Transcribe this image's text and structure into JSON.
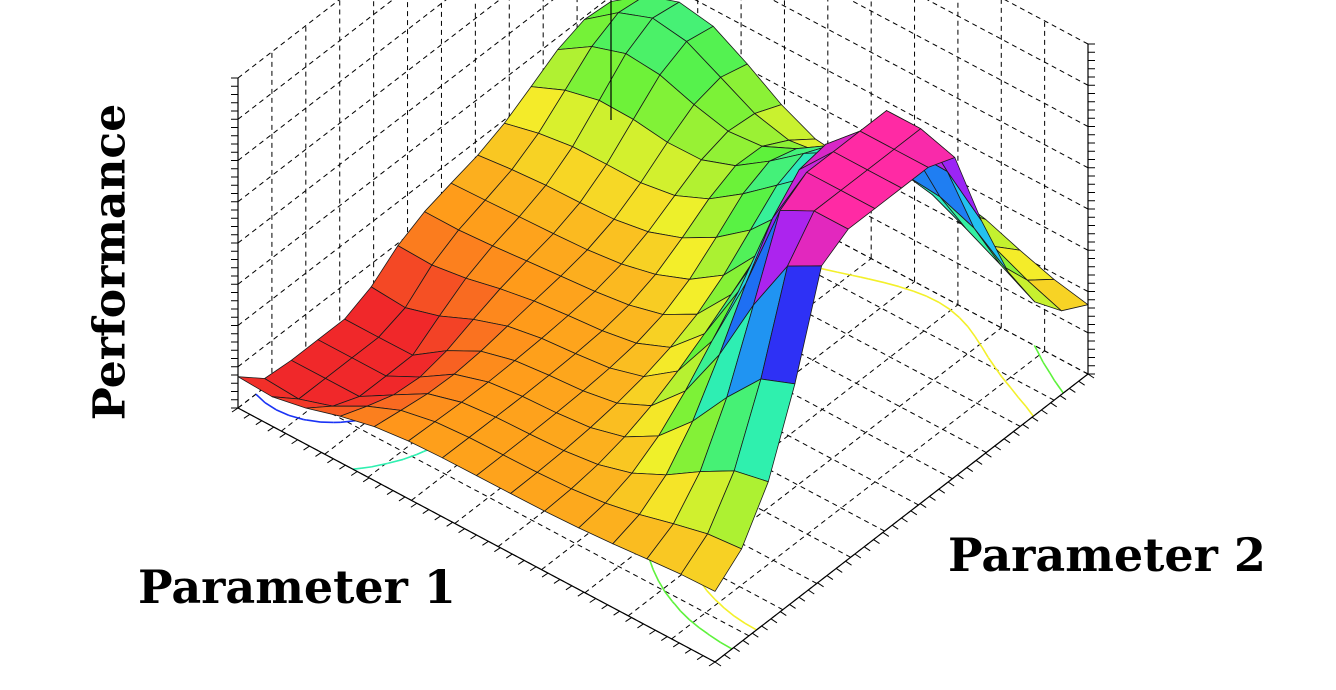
{
  "chart_data": {
    "type": "surface3d",
    "axes": {
      "x_label": "Parameter 1",
      "y_label": "Parameter 2",
      "z_label": "Performance"
    },
    "grid": true,
    "show_contours": true,
    "colormap": [
      "#f0282a",
      "#ff9a1a",
      "#f3f02a",
      "#5df23b",
      "#2ef0b0",
      "#23c7f0",
      "#1a33f5",
      "#a524f5",
      "#ff2aa4"
    ],
    "surface": {
      "description_grid": "rows = Parameter 1 (front-left edge to back edge), cols = Parameter 2 (left to right), values = Performance",
      "rows": 14,
      "cols": 14,
      "peaks": [
        {
          "p1": 0.0,
          "p2": 0.4,
          "height": 0.92
        },
        {
          "p1": 0.1,
          "p2": 0.6,
          "height": 0.65
        },
        {
          "p1": 0.4,
          "p2": 0.85,
          "height": 0.45
        },
        {
          "p1": 0.85,
          "p2": 0.95,
          "height": 0.3
        }
      ],
      "valleys": [
        {
          "p1": 0.95,
          "p2": 0.2,
          "depth": 0.25
        },
        {
          "p1": 0.45,
          "p2": 0.95,
          "depth": 0.2
        }
      ]
    },
    "contour_levels": [
      0.05,
      0.15,
      0.25,
      0.35
    ]
  }
}
